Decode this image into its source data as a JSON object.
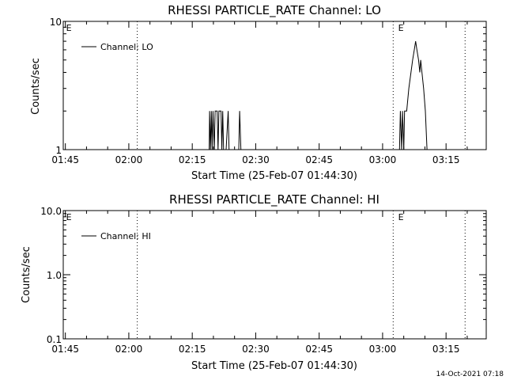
{
  "footer_timestamp": "14-Oct-2021 07:18",
  "colors": {
    "background": "#ffffff",
    "foreground": "#000000"
  },
  "chart_data": [
    {
      "type": "line",
      "title": "RHESSI PARTICLE_RATE Channel: LO",
      "xlabel": "Start Time (25-Feb-07 01:44:30)",
      "ylabel": "Counts/sec",
      "y_scale": "log",
      "ylim": [
        1,
        10
      ],
      "ytick_labels": [
        "10",
        "1"
      ],
      "xlim_minutes_after_start": [
        0,
        100
      ],
      "xtick_labels": [
        "01:45",
        "02:00",
        "02:15",
        "02:30",
        "02:45",
        "03:00",
        "03:15"
      ],
      "xtick_minutes": [
        0.5,
        15.5,
        30.5,
        45.5,
        60.5,
        75.5,
        90.5
      ],
      "vertical_lines_minutes": [
        17.5,
        78,
        95
      ],
      "markers": [
        {
          "label": "E",
          "x": 0.5
        },
        {
          "label": "E",
          "x": 79
        }
      ],
      "legend_location": "upper-left",
      "series": [
        {
          "name": "Channel: LO",
          "points": [
            [
              34.5,
              1
            ],
            [
              34.6,
              2
            ],
            [
              34.8,
              1
            ],
            [
              35.0,
              2
            ],
            [
              35.2,
              1
            ],
            [
              35.4,
              2
            ],
            [
              35.7,
              1
            ],
            [
              35.9,
              2
            ],
            [
              36.4,
              2
            ],
            [
              36.6,
              1
            ],
            [
              36.8,
              2
            ],
            [
              37.3,
              2
            ],
            [
              37.5,
              1
            ],
            [
              37.7,
              2
            ],
            [
              37.9,
              1
            ],
            [
              38.5,
              1
            ],
            [
              39.0,
              2
            ],
            [
              39.2,
              1
            ],
            [
              41.5,
              1
            ],
            [
              41.7,
              2
            ],
            [
              42.0,
              1
            ],
            [
              79.5,
              1
            ],
            [
              79.7,
              2
            ],
            [
              80.0,
              1
            ],
            [
              80.2,
              2
            ],
            [
              80.5,
              1
            ],
            [
              80.7,
              2
            ],
            [
              81.2,
              2
            ],
            [
              81.7,
              3
            ],
            [
              82.2,
              4
            ],
            [
              82.6,
              5
            ],
            [
              83.0,
              6
            ],
            [
              83.3,
              7
            ],
            [
              83.6,
              6
            ],
            [
              84.0,
              5
            ],
            [
              84.3,
              4
            ],
            [
              84.5,
              5
            ],
            [
              84.8,
              4
            ],
            [
              85.2,
              3
            ],
            [
              85.6,
              2
            ],
            [
              86.0,
              1
            ]
          ]
        }
      ]
    },
    {
      "type": "line",
      "title": "RHESSI PARTICLE_RATE Channel: HI",
      "xlabel": "Start Time (25-Feb-07 01:44:30)",
      "ylabel": "Counts/sec",
      "y_scale": "log",
      "ylim": [
        0.1,
        10
      ],
      "ytick_labels": [
        "10.0",
        "1.0",
        "0.1"
      ],
      "xlim_minutes_after_start": [
        0,
        100
      ],
      "xtick_labels": [
        "01:45",
        "02:00",
        "02:15",
        "02:30",
        "02:45",
        "03:00",
        "03:15"
      ],
      "xtick_minutes": [
        0.5,
        15.5,
        30.5,
        45.5,
        60.5,
        75.5,
        90.5
      ],
      "vertical_lines_minutes": [
        17.5,
        78,
        95
      ],
      "markers": [
        {
          "label": "E",
          "x": 0.5
        },
        {
          "label": "E",
          "x": 79
        }
      ],
      "legend_location": "upper-left",
      "series": [
        {
          "name": "Channel: HI",
          "points": []
        }
      ]
    }
  ]
}
